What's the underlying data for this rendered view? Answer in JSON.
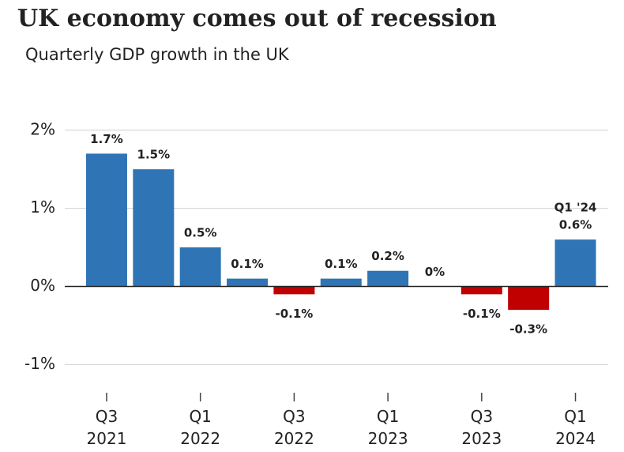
{
  "chart_data": {
    "type": "bar",
    "title": "UK economy comes out of recession",
    "subtitle": "Quarterly GDP growth in the UK",
    "categories": [
      "Q3 2021",
      null,
      "Q1 2022",
      null,
      "Q3 2022",
      null,
      "Q1 2023",
      null,
      "Q3 2023",
      null,
      "Q1 2024"
    ],
    "values": [
      1.7,
      1.5,
      0.5,
      0.1,
      -0.1,
      0.1,
      0.2,
      0,
      -0.1,
      -0.3,
      0.6
    ],
    "value_labels": [
      "1.7%",
      "1.5%",
      "0.5%",
      "0.1%",
      "-0.1%",
      "0.1%",
      "0.2%",
      "0%",
      "-0.1%",
      "-0.3%",
      "0.6%"
    ],
    "annotation": "Q1 '24",
    "color": "#2f74b5",
    "negative_color": "#c00000",
    "ylim": [
      -1.3,
      2.2
    ],
    "yticks": [
      {
        "value": -1,
        "label": "-1%"
      },
      {
        "value": 0,
        "label": "0%"
      },
      {
        "value": 1,
        "label": "1%"
      },
      {
        "value": 2,
        "label": "2%"
      }
    ],
    "grid": true
  }
}
